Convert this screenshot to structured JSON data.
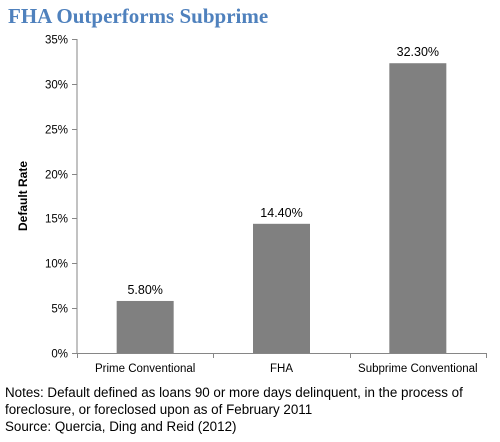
{
  "title": "FHA Outperforms Subprime",
  "colors": {
    "title": "#4f81bd",
    "bar": "#808080",
    "axis": "#868686",
    "gridline": "#d9d9d9"
  },
  "chart_data": {
    "type": "bar",
    "title": "FHA Outperforms Subprime",
    "xlabel": "",
    "ylabel": "Default Rate",
    "ylim": [
      0,
      35
    ],
    "yticks": [
      0,
      5,
      10,
      15,
      20,
      25,
      30,
      35
    ],
    "ytick_labels": [
      "0%",
      "5%",
      "10%",
      "15%",
      "20%",
      "25%",
      "30%",
      "35%"
    ],
    "categories": [
      "Prime Conventional",
      "FHA",
      "Subprime Conventional"
    ],
    "values": [
      5.8,
      14.4,
      32.3
    ],
    "data_labels": [
      "5.80%",
      "14.40%",
      "32.30%"
    ],
    "grid": false,
    "legend": "none"
  },
  "notes": {
    "line1": "Notes: Default defined as loans 90 or more days delinquent, in the process of",
    "line2": "foreclosure, or foreclosed upon as of February 2011",
    "source": "Source: Quercia, Ding and Reid (2012)"
  }
}
